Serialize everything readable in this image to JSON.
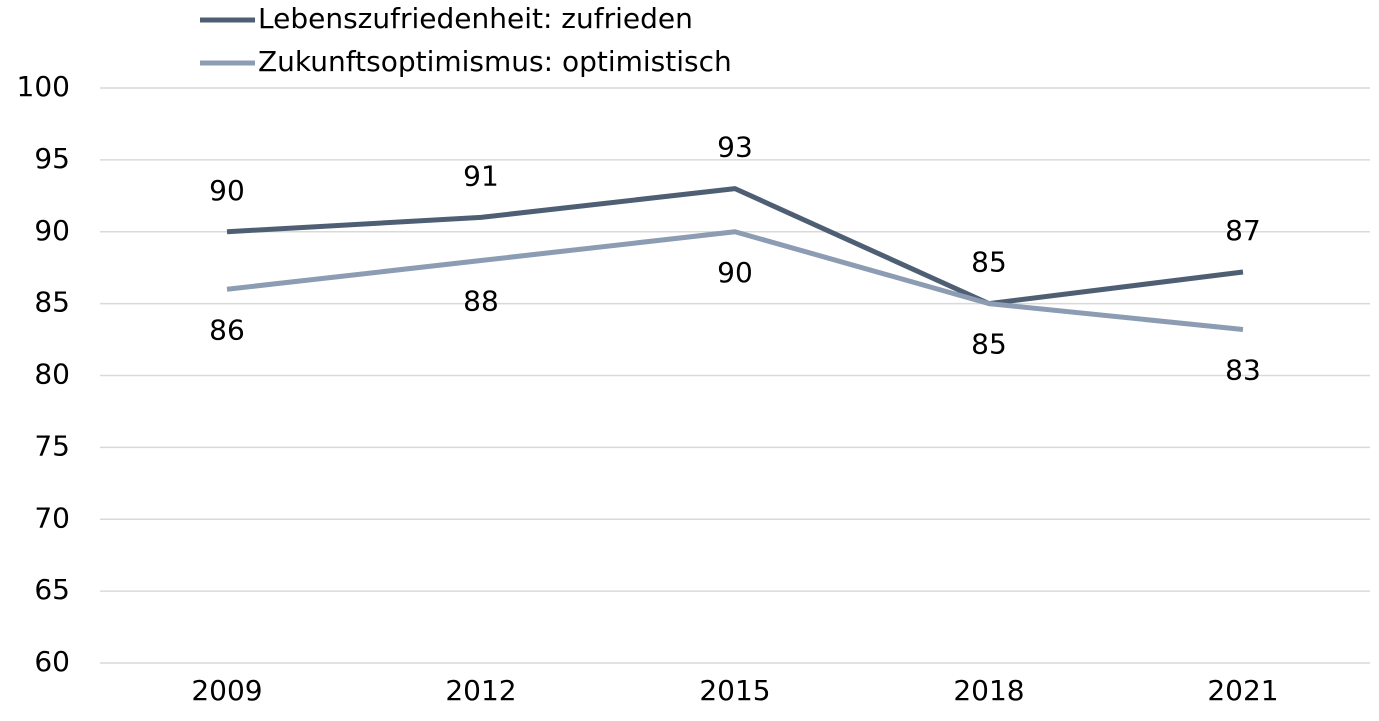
{
  "chart_data": {
    "type": "line",
    "categories": [
      "2009",
      "2012",
      "2015",
      "2018",
      "2021"
    ],
    "series": [
      {
        "name": "Lebenszufriedenheit: zufrieden",
        "color": "#4f5f73",
        "values": [
          90,
          91,
          93,
          85,
          87.2
        ],
        "value_labels": [
          "90",
          "91",
          "93",
          "85",
          "87"
        ]
      },
      {
        "name": "Zukunftsoptimismus: optimistisch",
        "color": "#8c9db3",
        "values": [
          86,
          88,
          90,
          85,
          83.2
        ],
        "value_labels": [
          "86",
          "88",
          "90",
          "85",
          "83"
        ]
      }
    ],
    "ylim": [
      60,
      100
    ],
    "yticks": [
      60,
      65,
      70,
      75,
      80,
      85,
      90,
      95,
      100
    ],
    "grid": true,
    "legend": "top"
  }
}
